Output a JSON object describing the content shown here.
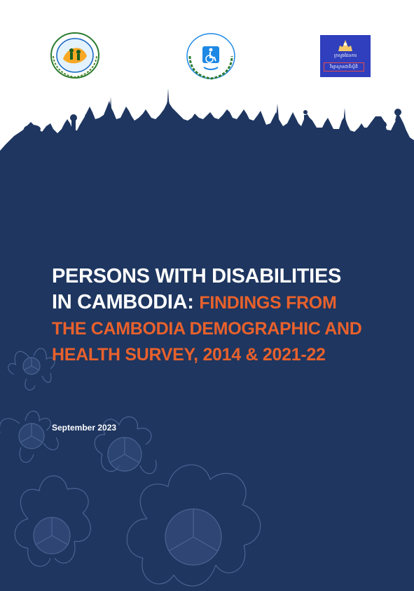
{
  "cover": {
    "title_line1": "PERSONS WITH DISABILITIES",
    "title_line2_white": "IN CAMBODIA:",
    "title_line2_orange": "FINDINGS FROM",
    "title_line3": "THE CAMBODIA DEMOGRAPHIC AND",
    "title_line4": "HEALTH SURVEY, 2014 & 2021-22",
    "date": "September 2023"
  },
  "logos": {
    "left": "cambodian-disabled-peoples-organisation-seal",
    "center": "disability-action-council-seal",
    "right": {
      "ministry_text": "ក្រសួងផែនការ",
      "department_text": "វិទ្យាស្ថានជាតិស្ថិតិ"
    }
  },
  "colors": {
    "background_navy": "#1e3660",
    "accent_orange": "#e8612c",
    "text_white": "#ffffff",
    "flower_line": "#4a6391"
  }
}
